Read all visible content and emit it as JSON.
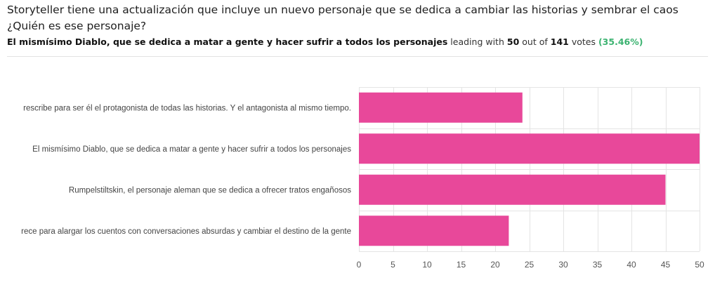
{
  "header": {
    "question": "Storyteller tiene una actualización que incluye un nuevo personaje que se dedica a cambiar las historias y sembrar el caos ¿Quién es ese personaje?",
    "leader": "El mismísimo Diablo, que se dedica a matar a gente y hacer sufrir a todos los personajes",
    "leading_with_text": "leading with",
    "leader_votes": "50",
    "out_of_text": "out of",
    "total_votes": "141",
    "votes_text": "votes",
    "leader_percent": "(35.46%)"
  },
  "colors": {
    "bar": "#e8489a",
    "percent_green": "#3cb371",
    "grid": "#e4e4e4",
    "axis_text": "#555555",
    "label_text": "#444444"
  },
  "chart_data": {
    "type": "bar",
    "orientation": "horizontal",
    "title": "",
    "xlabel": "",
    "ylabel": "",
    "categories": [
      "rescribe para ser él el protagonista de todas las historias. Y el antagonista al mismo tiempo.",
      "El mismísimo Diablo, que se dedica a matar a gente y hacer sufrir a todos los personajes",
      "Rumpelstiltskin, el personaje aleman que se dedica a ofrecer tratos engañosos",
      "rece para alargar los cuentos con conversaciones absurdas y cambiar el destino de la gente"
    ],
    "values": [
      24,
      50,
      45,
      22
    ],
    "xlim": [
      0,
      50
    ],
    "ticks": [
      "0",
      "5",
      "10",
      "15",
      "20",
      "25",
      "30",
      "35",
      "40",
      "45",
      "50"
    ],
    "tick_values": [
      0,
      5,
      10,
      15,
      20,
      25,
      30,
      35,
      40,
      45,
      50
    ],
    "grid": true,
    "legend": "none"
  }
}
